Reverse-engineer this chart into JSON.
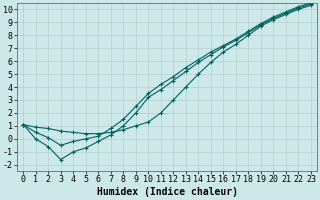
{
  "bg_color": "#cce8e8",
  "grid_color": "#b0c8c8",
  "line_color": "#006060",
  "xlabel": "Humidex (Indice chaleur)",
  "xlim": [
    -0.5,
    23.5
  ],
  "ylim": [
    -2.5,
    10.5
  ],
  "xticks": [
    0,
    1,
    2,
    3,
    4,
    5,
    6,
    7,
    8,
    9,
    10,
    11,
    12,
    13,
    14,
    15,
    16,
    17,
    18,
    19,
    20,
    21,
    22,
    23
  ],
  "yticks": [
    -2,
    -1,
    0,
    1,
    2,
    3,
    4,
    5,
    6,
    7,
    8,
    9,
    10
  ],
  "line1_x": [
    0,
    1,
    2,
    3,
    4,
    5,
    6,
    7,
    8,
    9,
    10,
    11,
    12,
    13,
    14,
    15,
    16,
    17,
    18,
    19,
    20,
    21,
    22,
    23
  ],
  "line1_y": [
    1.1,
    0.9,
    0.8,
    0.6,
    0.5,
    0.4,
    0.4,
    0.5,
    0.7,
    1.0,
    1.3,
    2.0,
    3.0,
    4.0,
    5.0,
    5.9,
    6.7,
    7.3,
    8.0,
    8.7,
    9.2,
    9.6,
    10.0,
    10.3
  ],
  "line2_x": [
    0,
    1,
    2,
    3,
    4,
    5,
    6,
    7,
    8,
    9,
    10,
    11,
    12,
    13,
    14,
    15,
    16,
    17,
    18,
    19,
    20,
    21,
    22,
    23
  ],
  "line2_y": [
    1.1,
    0.0,
    -0.6,
    -1.6,
    -1.0,
    -0.7,
    -0.2,
    0.3,
    1.0,
    2.0,
    3.2,
    3.8,
    4.5,
    5.2,
    5.9,
    6.5,
    7.1,
    7.6,
    8.2,
    8.8,
    9.3,
    9.7,
    10.1,
    10.4
  ],
  "line3_x": [
    0,
    1,
    2,
    3,
    4,
    5,
    6,
    7,
    8,
    9,
    10,
    11,
    12,
    13,
    14,
    15,
    16,
    17,
    18,
    19,
    20,
    21,
    22,
    23
  ],
  "line3_y": [
    1.1,
    0.5,
    0.1,
    -0.5,
    -0.2,
    0.0,
    0.2,
    0.8,
    1.5,
    2.5,
    3.5,
    4.2,
    4.8,
    5.5,
    6.1,
    6.7,
    7.2,
    7.7,
    8.3,
    8.9,
    9.4,
    9.8,
    10.2,
    10.5
  ],
  "marker": "+",
  "markersize": 3.5,
  "markeredgewidth": 0.8,
  "linewidth": 0.8,
  "font_size_label": 7,
  "font_size_tick": 6
}
